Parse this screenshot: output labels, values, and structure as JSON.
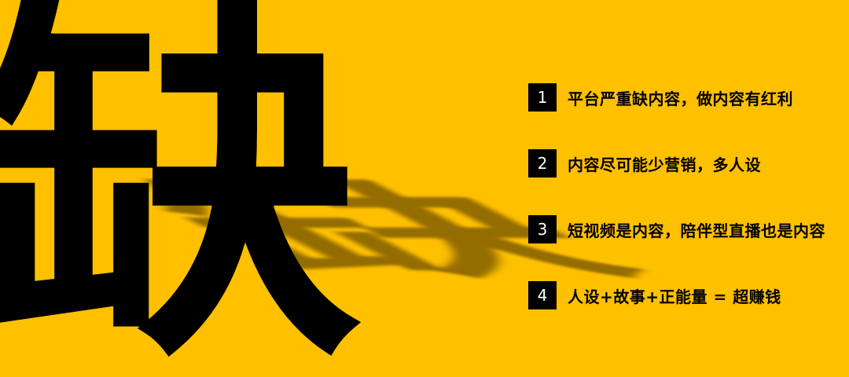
{
  "big_character": "缺",
  "points": [
    {
      "number": "1",
      "text": "平台严重缺内容，做内容有红利"
    },
    {
      "number": "2",
      "text": "内容尽可能少营销，多人设"
    },
    {
      "number": "3",
      "text": "短视频是内容，陪伴型直播也是内容"
    },
    {
      "number": "4",
      "text": "人设+故事+正能量 = 超赚钱"
    }
  ],
  "colors": {
    "background": "#ffc000",
    "text": "#000000",
    "badge_background": "#000000",
    "badge_text": "#ffffff"
  }
}
